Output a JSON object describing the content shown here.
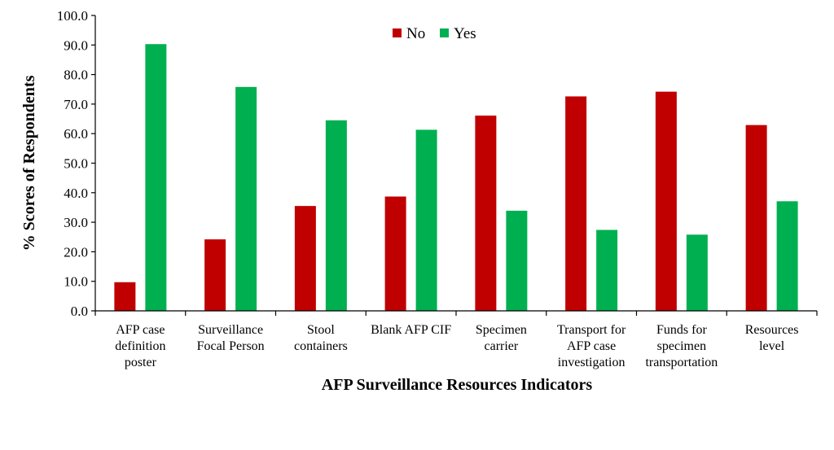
{
  "chart_data": {
    "type": "bar",
    "title": "",
    "xlabel": "AFP Surveillance Resources Indicators",
    "ylabel": "% Scores of Respondents",
    "ylim": [
      0,
      100
    ],
    "yticks": [
      "0.0",
      "10.0",
      "20.0",
      "30.0",
      "40.0",
      "50.0",
      "60.0",
      "70.0",
      "80.0",
      "90.0",
      "100.0"
    ],
    "categories": [
      [
        "AFP case",
        "definition",
        "poster"
      ],
      [
        "Surveillance",
        "Focal Person"
      ],
      [
        "Stool",
        "containers"
      ],
      [
        "Blank AFP CIF"
      ],
      [
        "Specimen",
        "carrier"
      ],
      [
        "Transport for",
        "AFP case",
        "investigation"
      ],
      [
        "Funds for",
        "specimen",
        "transportation"
      ],
      [
        "Resources",
        "level"
      ]
    ],
    "series": [
      {
        "name": "No",
        "color": "#C00000",
        "values": [
          9.7,
          24.2,
          35.5,
          38.7,
          66.1,
          72.6,
          74.2,
          62.9
        ]
      },
      {
        "name": "Yes",
        "color": "#00B050",
        "values": [
          90.3,
          75.8,
          64.5,
          61.3,
          33.9,
          27.4,
          25.8,
          37.1
        ]
      }
    ],
    "legend_position": "top-center",
    "grid": false
  }
}
